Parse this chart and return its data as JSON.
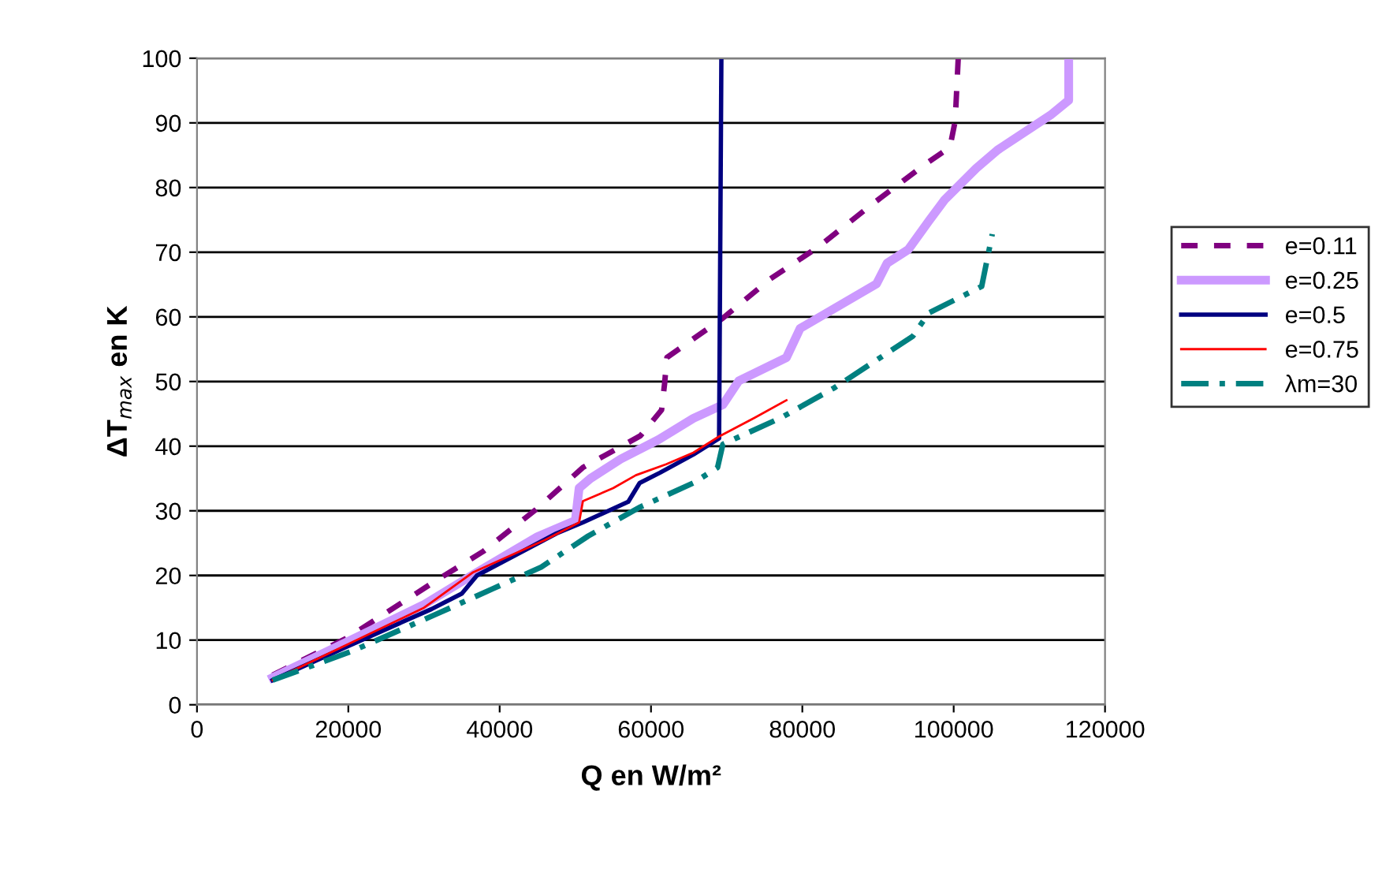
{
  "chart_data": {
    "type": "line",
    "xlabel": "Q en W/m²",
    "ylabel": "ΔT$_{max}$ en K",
    "xlim": [
      0,
      120000
    ],
    "ylim": [
      0,
      100
    ],
    "xticks": [
      0,
      20000,
      40000,
      60000,
      80000,
      100000,
      120000
    ],
    "yticks": [
      0,
      10,
      20,
      30,
      40,
      50,
      60,
      70,
      80,
      90,
      100
    ],
    "grid": "y",
    "legend": "right",
    "marker": "none",
    "series": [
      {
        "name": "e=0.11",
        "color": "#800080",
        "line_style": "dashed",
        "x": [
          10000,
          19800,
          31600,
          37800,
          44800,
          51000,
          58600,
          61400,
          61800,
          62100,
          65600,
          69500,
          75800,
          82100,
          89100,
          96000,
          99500,
          100200,
          100600
        ],
        "values": [
          4.6,
          10.3,
          19.2,
          23.7,
          30.2,
          36.7,
          41.6,
          45.6,
          49.7,
          53.7,
          56.6,
          59.8,
          65.9,
          70.8,
          77.3,
          83.4,
          86.2,
          90.3,
          100
        ]
      },
      {
        "name": "e=0.25",
        "color": "#cc99ff",
        "line_style": "solid",
        "x": [
          10000,
          20000,
          30000,
          37000,
          45000,
          50000,
          50500,
          52000,
          56000,
          61000,
          65600,
          69500,
          71600,
          77900,
          79700,
          89800,
          91200,
          94000,
          96700,
          98800,
          103000,
          105800,
          112800,
          115200,
          115200
        ],
        "values": [
          4.2,
          9.8,
          15.5,
          20.5,
          26,
          28.5,
          33.5,
          35,
          38,
          41,
          44.3,
          46.4,
          50.1,
          53.7,
          58.2,
          65.1,
          68.3,
          70.4,
          74.8,
          78.1,
          83,
          85.8,
          91.2,
          93.5,
          100
        ]
      },
      {
        "name": "e=0.5",
        "color": "#000080",
        "line_style": "solid",
        "x": [
          10000,
          20000,
          31000,
          35000,
          37000,
          47500,
          51000,
          57000,
          58500,
          61200,
          65600,
          69000,
          69300
        ],
        "values": [
          3.8,
          9.1,
          14.8,
          17.2,
          20,
          26.5,
          28.2,
          31.4,
          34.3,
          35.9,
          38.7,
          41.2,
          100
        ]
      },
      {
        "name": "e=0.75",
        "color": "#ff0000",
        "line_style": "solid",
        "x": [
          10000,
          20000,
          30000,
          36500,
          46000,
          50500,
          51000,
          55000,
          58000,
          62000,
          65600,
          69000,
          73700,
          77900
        ],
        "values": [
          3.8,
          9.4,
          15,
          20.5,
          25.5,
          28.2,
          31.5,
          33.5,
          35.5,
          37.2,
          39,
          41.5,
          44.4,
          47.1
        ]
      },
      {
        "name": "λm=30",
        "color": "#008080",
        "line_style": "dashdot",
        "x": [
          10000,
          20500,
          31600,
          39200,
          45500,
          51700,
          58600,
          65600,
          68800,
          69500,
          77200,
          84200,
          94600,
          96700,
          103700,
          105100
        ],
        "values": [
          3.8,
          8.3,
          14,
          18,
          21.3,
          26.1,
          30.6,
          34.3,
          36.7,
          40.3,
          44.4,
          49,
          57,
          60.6,
          64.7,
          72.8
        ]
      }
    ]
  }
}
